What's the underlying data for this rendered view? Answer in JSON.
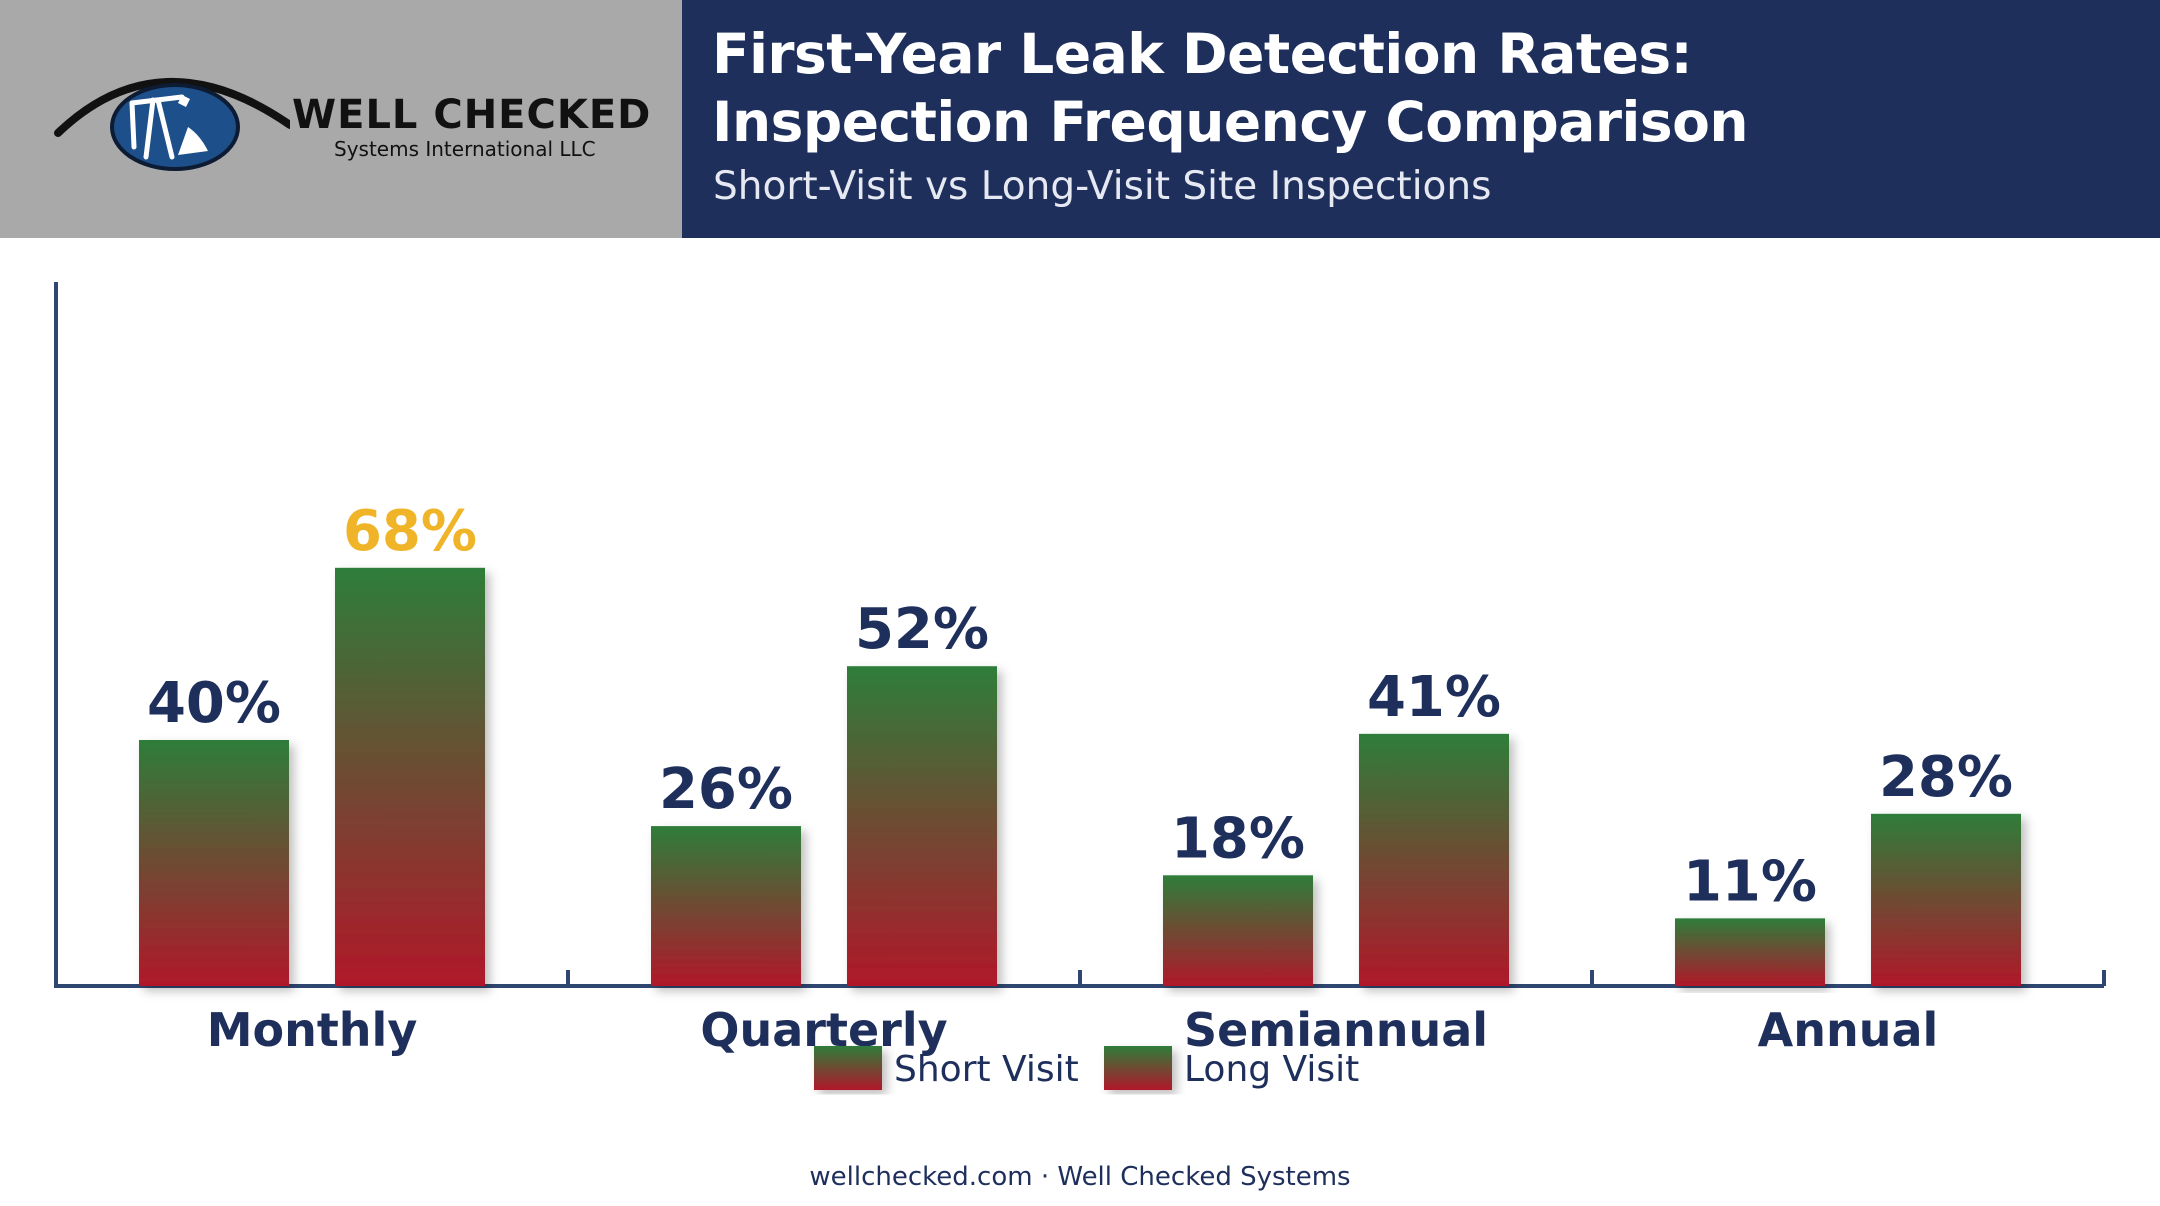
{
  "brand": {
    "name": "WELL CHECKED",
    "subname": "Systems International LLC"
  },
  "header": {
    "title_line1": "First-Year Leak Detection Rates:",
    "title_line2": "Inspection Frequency Comparison",
    "subtitle": "Short-Visit vs Long-Visit Site Inspections"
  },
  "chart_data": {
    "type": "bar",
    "categories": [
      "Monthly",
      "Quarterly",
      "Semiannual",
      "Annual"
    ],
    "series": [
      {
        "name": "Short Visit",
        "values": [
          40,
          26,
          18,
          11
        ]
      },
      {
        "name": "Long Visit",
        "values": [
          68,
          52,
          41,
          28
        ]
      }
    ],
    "value_labels": [
      [
        "40%",
        "26%",
        "18%",
        "11%"
      ],
      [
        "68%",
        "52%",
        "41%",
        "28%"
      ]
    ],
    "highlight": {
      "series": 1,
      "category": 0,
      "color": "#f0b429"
    },
    "ylim": [
      0,
      80
    ],
    "grid": false,
    "legend_position": "bottom-center",
    "colors": {
      "bar_top": "#2e7d3a",
      "bar_bottom": "#b0182a",
      "axis": "#2f4770",
      "label": "#1e2f5c"
    }
  },
  "footer": {
    "text": "wellchecked.com · Well Checked Systems"
  },
  "colors": {
    "header_logo_bg": "#a9a9a9",
    "header_title_bg": "#1e2f5c"
  }
}
